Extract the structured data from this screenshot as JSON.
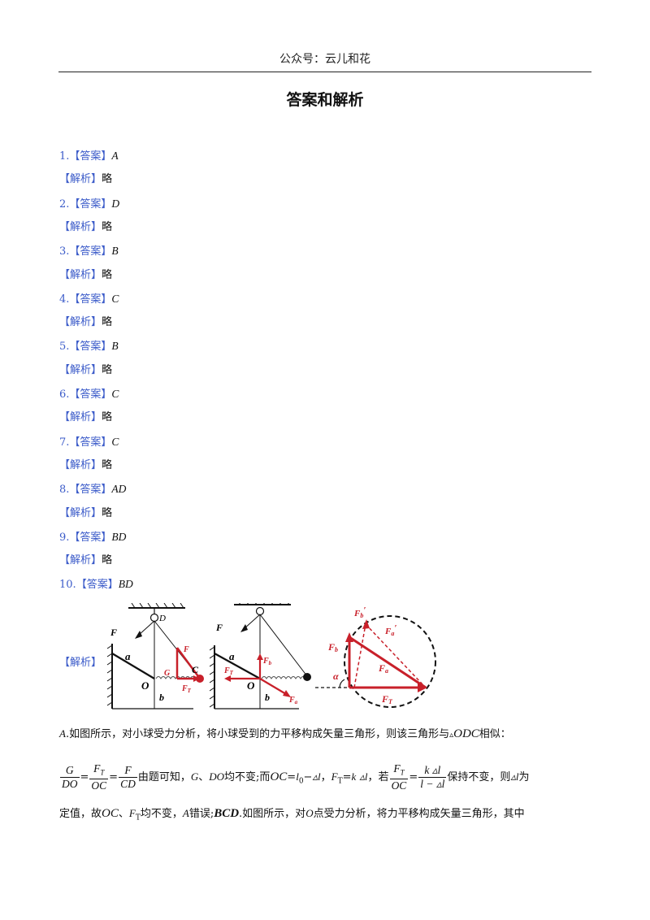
{
  "header": {
    "text": "公众号：云儿和花"
  },
  "title": "答案和解析",
  "answers": [
    {
      "num": "1.",
      "tag": "【答案】",
      "answer": "A",
      "explain_tag": "【解析】",
      "explain": "略"
    },
    {
      "num": "2.",
      "tag": "【答案】",
      "answer": "D",
      "explain_tag": "【解析】",
      "explain": "略"
    },
    {
      "num": "3.",
      "tag": "【答案】",
      "answer": "B",
      "explain_tag": "【解析】",
      "explain": "略"
    },
    {
      "num": "4.",
      "tag": "【答案】",
      "answer": "C",
      "explain_tag": "【解析】",
      "explain": "略"
    },
    {
      "num": "5.",
      "tag": "【答案】",
      "answer": "B",
      "explain_tag": "【解析】",
      "explain": "略"
    },
    {
      "num": "6.",
      "tag": "【答案】",
      "answer": "C",
      "explain_tag": "【解析】",
      "explain": "略"
    },
    {
      "num": "7.",
      "tag": "【答案】",
      "answer": "C",
      "explain_tag": "【解析】",
      "explain": "略"
    },
    {
      "num": "8.",
      "tag": "【答案】",
      "answer": "AD",
      "explain_tag": "【解析】",
      "explain": "略"
    },
    {
      "num": "9.",
      "tag": "【答案】",
      "answer": "BD",
      "explain_tag": "【解析】",
      "explain": "略"
    },
    {
      "num": "10.",
      "tag": "【答案】",
      "answer": "BD"
    }
  ],
  "q10": {
    "explain_tag": "【解析】",
    "diagram_labels": {
      "F": "F",
      "D": "D",
      "a": "a",
      "O": "O",
      "b": "b",
      "C": "C",
      "G": "G",
      "F_main": "F",
      "F_T": "F",
      "T": "T",
      "F_b": "F",
      "b_sub": "b",
      "F_a": "F",
      "a_sub": "a",
      "alpha": "α",
      "Fb_prime": "F",
      "Fa_prime": "F",
      "prime": "′"
    },
    "para1": {
      "lead": "A",
      "text": ".如图所示，对小球受力分析，将小球受到的力平移构成矢量三角形，则该三角形与",
      "tri": "▵",
      "odc": "ODC",
      "tail": "相似："
    },
    "para2": {
      "f1n": "G",
      "f1d": "DO",
      "eq": "=",
      "f2n": "F",
      "f2n_sub": "T",
      "f2d": "OC",
      "f3n": "F",
      "f3d": "CD",
      "t1": "由题可知，",
      "g": "G",
      "sep": "、",
      "do": "DO",
      "t2": "均不变;而",
      "oc": "OC",
      "eq2": "=",
      "l0": "l",
      "l0_sub": "0",
      "minus": "−",
      "dl": "▵l",
      "comma": "，",
      "ft": "F",
      "ft_sub": "T",
      "eq3": "=",
      "k": "k",
      "dl2": "▵l",
      "t3": "，若",
      "f4n": "F",
      "f4n_sub": "T",
      "f4d": "OC",
      "f5n": "k ▵l",
      "f5d": "l − ▵l",
      "t4": "保持不变，则",
      "dl3": "▵l",
      "t5": "为"
    },
    "para3": {
      "t1": "定值，故",
      "oc": "OC",
      "sep": "、",
      "ft": "F",
      "ft_sub": "T",
      "t2": "均不变，",
      "a": "A",
      "t3": "错误;",
      "bcd": "BCD",
      "t4": ".如图所示，对",
      "o": "O",
      "t5": "点受力分析，将力平移构成矢量三角形，其中"
    }
  }
}
